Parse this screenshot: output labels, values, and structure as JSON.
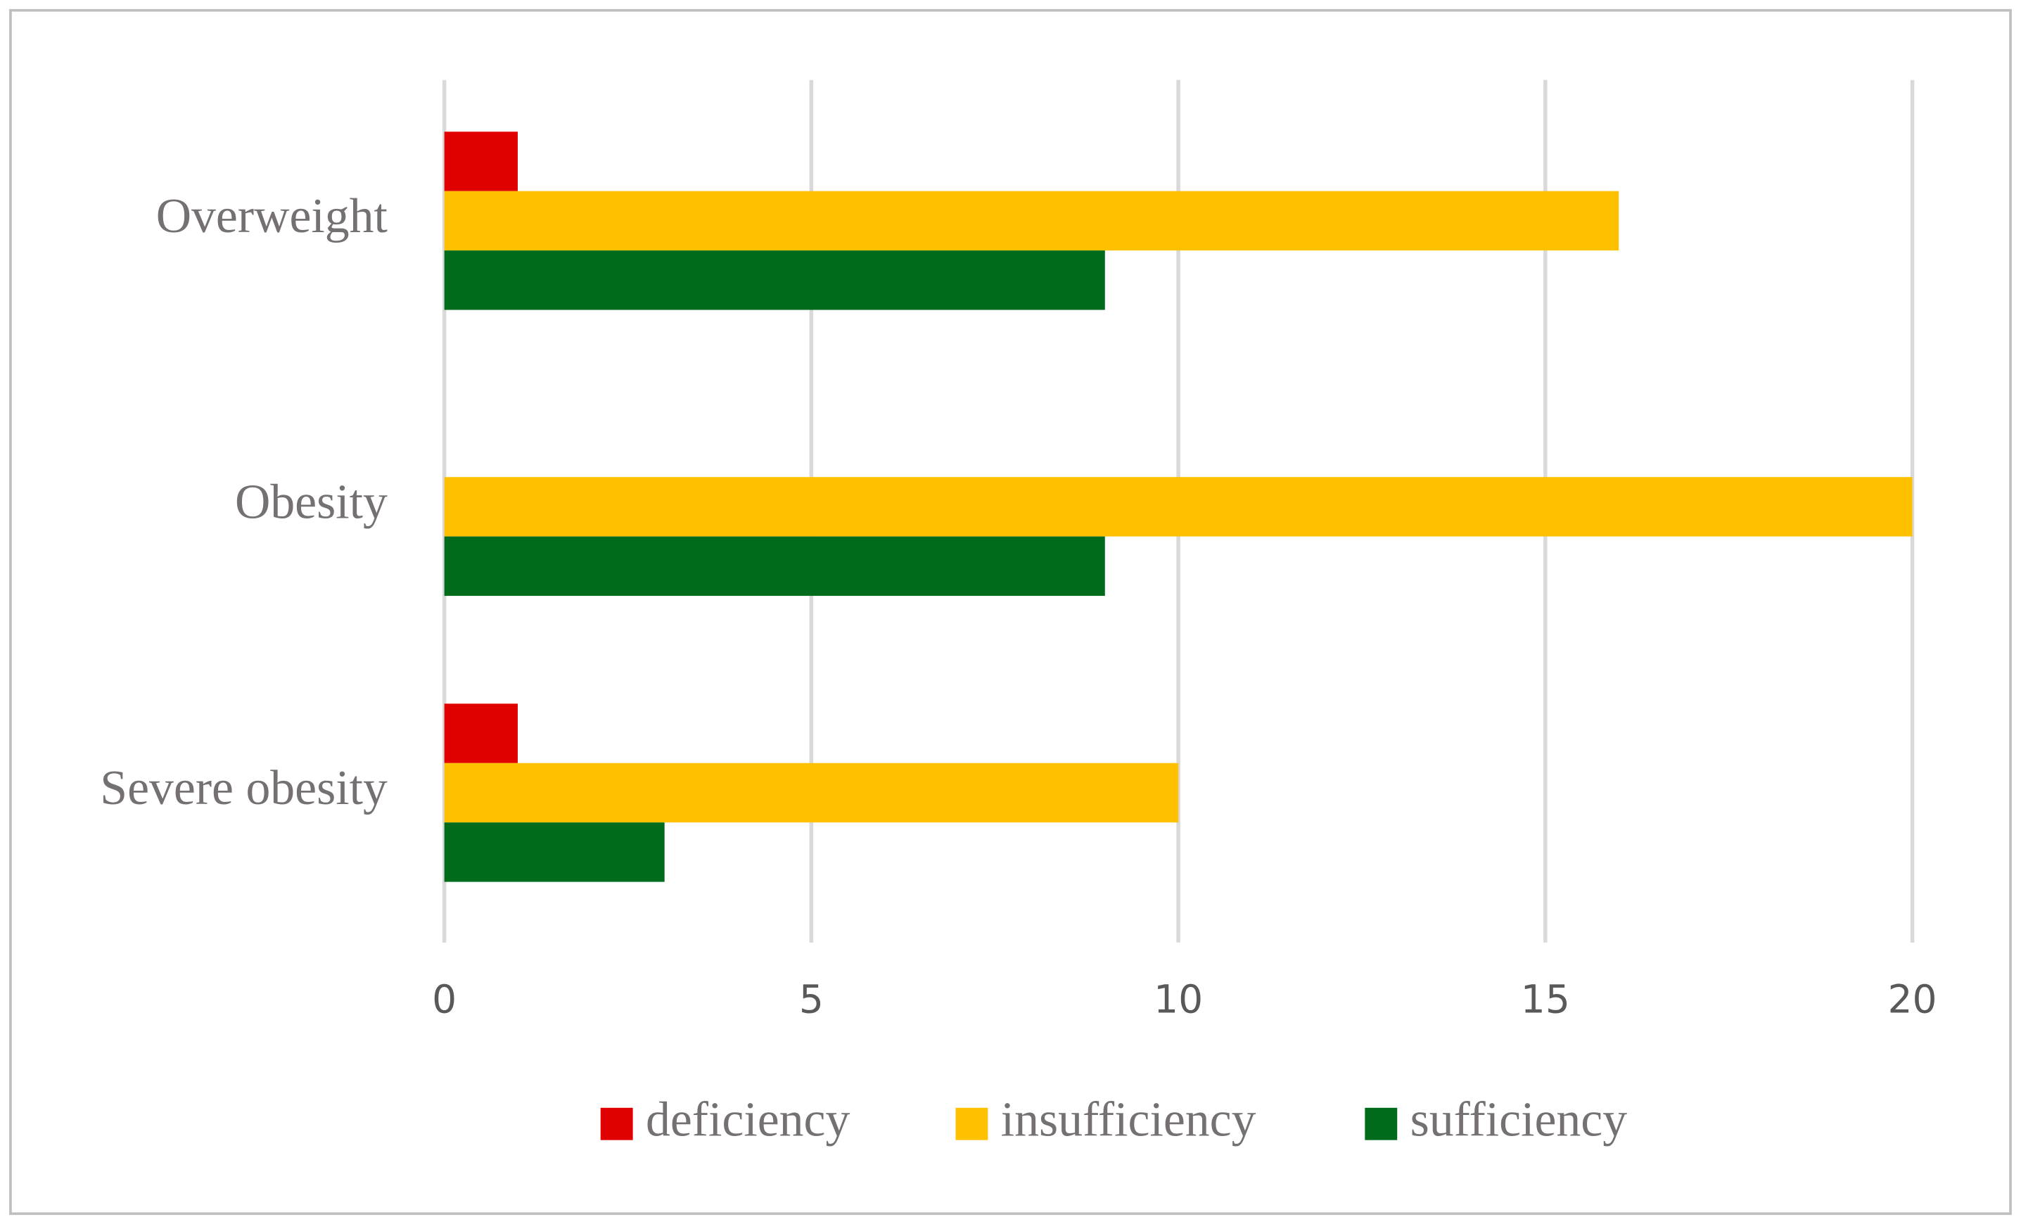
{
  "chart_data": {
    "type": "bar",
    "orientation": "horizontal",
    "categories": [
      "Overweight",
      "Obesity",
      "Severe obesity"
    ],
    "series": [
      {
        "name": "deficiency",
        "color": "#e00000",
        "values": [
          1,
          0,
          1
        ]
      },
      {
        "name": "insufficiency",
        "color": "#ffc000",
        "values": [
          16,
          20,
          10
        ]
      },
      {
        "name": "sufficiency",
        "color": "#006b1a",
        "values": [
          9,
          9,
          3
        ]
      }
    ],
    "xlim": [
      0,
      20
    ],
    "xticks": [
      0,
      5,
      10,
      15,
      20
    ],
    "grid": true,
    "legend": "bottom"
  }
}
